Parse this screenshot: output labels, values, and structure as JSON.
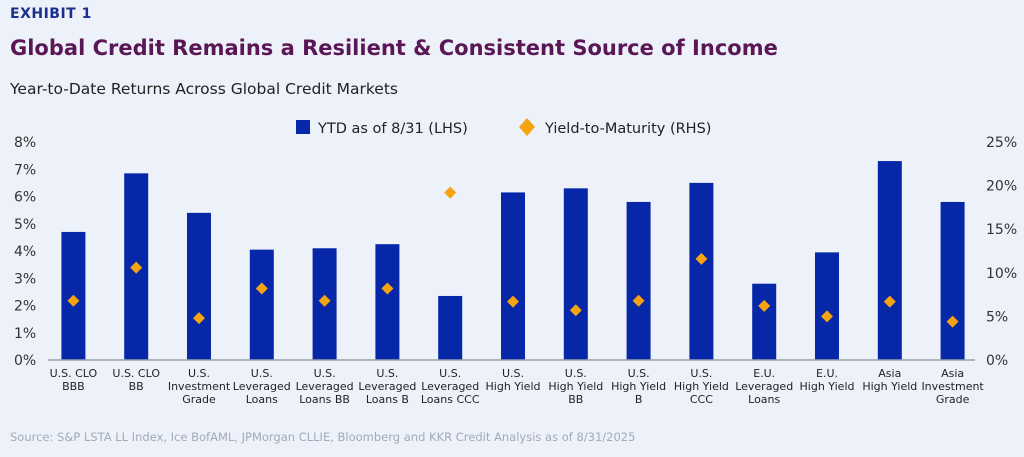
{
  "header": {
    "exhibit": "EXHIBIT 1",
    "title": "Global Credit Remains a Resilient & Consistent Source of Income",
    "subtitle": "Year-to-Date Returns Across Global Credit Markets"
  },
  "footer": {
    "source": "Source: S&P LSTA LL Index, Ice BofAML, JPMorgan CLLIE, Bloomberg and KKR Credit Analysis as of 8/31/2025"
  },
  "chart_data": {
    "type": "bar",
    "categories": [
      [
        "U.S. CLO",
        "BBB"
      ],
      [
        "U.S. CLO",
        "BB"
      ],
      [
        "U.S.",
        "Investment",
        "Grade"
      ],
      [
        "U.S.",
        "Leveraged",
        "Loans"
      ],
      [
        "U.S.",
        "Leveraged",
        "Loans BB"
      ],
      [
        "U.S.",
        "Leveraged",
        "Loans B"
      ],
      [
        "U.S.",
        "Leveraged",
        "Loans CCC"
      ],
      [
        "U.S.",
        "High Yield"
      ],
      [
        "U.S.",
        "High Yield",
        "BB"
      ],
      [
        "U.S.",
        "High Yield",
        "B"
      ],
      [
        "U.S.",
        "High Yield",
        "CCC"
      ],
      [
        "E.U.",
        "Leveraged",
        "Loans"
      ],
      [
        "E.U.",
        "High Yield"
      ],
      [
        "Asia",
        "High Yield"
      ],
      [
        "Asia",
        "Investment",
        "Grade"
      ]
    ],
    "series": [
      {
        "name": "YTD as of 8/31 (LHS)",
        "type": "bar",
        "axis": "left",
        "color": "#0527a8",
        "values": [
          4.7,
          6.85,
          5.4,
          4.05,
          4.1,
          4.25,
          2.35,
          6.15,
          6.3,
          5.8,
          6.5,
          2.8,
          3.95,
          7.3,
          5.8
        ]
      },
      {
        "name": "Yield-to-Maturity (RHS)",
        "type": "scatter",
        "marker": "diamond",
        "axis": "right",
        "color": "#f5a311",
        "values": [
          6.8,
          10.6,
          4.8,
          8.2,
          6.8,
          8.2,
          19.2,
          6.7,
          5.7,
          6.8,
          11.6,
          6.2,
          5.0,
          6.7,
          4.4
        ]
      }
    ],
    "left_axis": {
      "ylim": [
        0,
        8
      ],
      "ticks": [
        "0%",
        "1%",
        "2%",
        "3%",
        "4%",
        "5%",
        "6%",
        "7%",
        "8%"
      ]
    },
    "right_axis": {
      "ylim": [
        0,
        25
      ],
      "ticks": [
        "0%",
        "5%",
        "10%",
        "15%",
        "20%",
        "25%"
      ]
    },
    "legend": "top-center",
    "grid": false
  }
}
